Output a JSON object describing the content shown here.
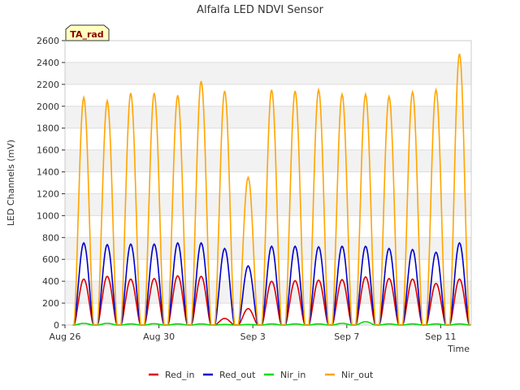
{
  "chart_data": {
    "type": "line",
    "title": "Alfalfa LED NDVI Sensor",
    "xlabel": "Time",
    "ylabel": "LED Channels (mV)",
    "ylim": [
      0,
      2600
    ],
    "yticks": [
      0,
      200,
      400,
      600,
      800,
      1000,
      1200,
      1400,
      1600,
      1800,
      2000,
      2200,
      2400,
      2600
    ],
    "xlim_days": [
      0,
      17.3
    ],
    "xticks": [
      {
        "day": 0,
        "label": "Aug 26"
      },
      {
        "day": 4,
        "label": "Aug 30"
      },
      {
        "day": 8,
        "label": "Sep 3"
      },
      {
        "day": 12,
        "label": "Sep 7"
      },
      {
        "day": 16,
        "label": "Sep 11"
      }
    ],
    "badge": "TA_rad",
    "legend_position": "bottom",
    "peak_days": [
      0.8,
      1.8,
      2.8,
      3.8,
      4.8,
      5.8,
      6.8,
      7.8,
      8.8,
      9.8,
      10.8,
      11.8,
      12.8,
      13.8,
      14.8,
      15.8,
      16.8
    ],
    "series": [
      {
        "name": "Red_in",
        "color": "#dd0000",
        "peaks": [
          420,
          445,
          420,
          425,
          450,
          445,
          60,
          150,
          400,
          405,
          410,
          415,
          440,
          425,
          420,
          380,
          420
        ]
      },
      {
        "name": "Red_out",
        "color": "#0000cc",
        "peaks": [
          750,
          735,
          740,
          740,
          750,
          750,
          700,
          540,
          720,
          720,
          715,
          720,
          720,
          700,
          690,
          665,
          750
        ]
      },
      {
        "name": "Nir_in",
        "color": "#00dd00",
        "peaks": [
          15,
          15,
          10,
          12,
          10,
          10,
          5,
          5,
          10,
          10,
          10,
          15,
          30,
          10,
          10,
          10,
          10
        ]
      },
      {
        "name": "Nir_out",
        "color": "#ffa500",
        "peaks": [
          2080,
          2050,
          2120,
          2120,
          2100,
          2230,
          2140,
          1350,
          2150,
          2140,
          2150,
          2110,
          2110,
          2090,
          2130,
          2150,
          2480
        ]
      }
    ]
  }
}
